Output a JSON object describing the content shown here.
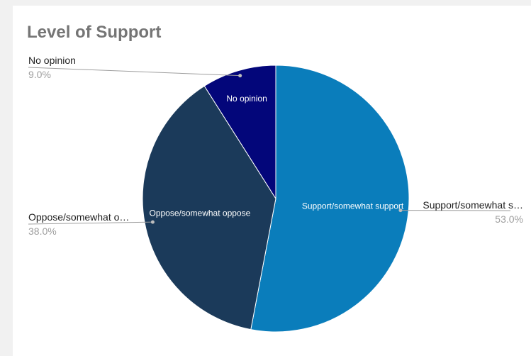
{
  "chart_data": {
    "type": "pie",
    "title": "Level of Support",
    "slices": [
      {
        "label": "Support/somewhat support",
        "value": 53.0,
        "percent_label": "53.0%",
        "inner_label": "Support/somewhat support",
        "outer_label": "Support/somewhat s…",
        "color": "#0a7dbb"
      },
      {
        "label": "Oppose/somewhat oppose",
        "value": 38.0,
        "percent_label": "38.0%",
        "inner_label": "Oppose/somewhat oppose",
        "outer_label": "Oppose/somewhat o…",
        "color": "#1b3a5a"
      },
      {
        "label": "No opinion",
        "value": 9.0,
        "percent_label": "9.0%",
        "inner_label": "No opinion",
        "outer_label": "No opinion",
        "color": "#03067a"
      }
    ],
    "legend": "none",
    "start": "top",
    "direction": "clockwise"
  }
}
